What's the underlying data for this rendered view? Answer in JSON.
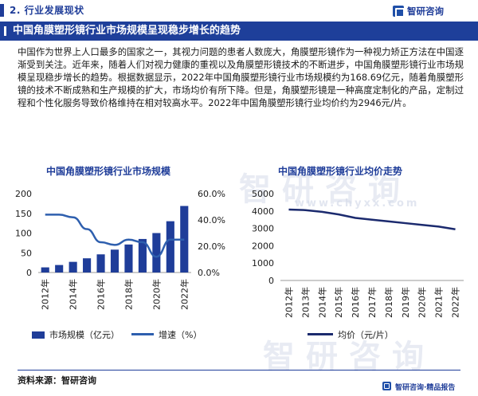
{
  "header": {
    "section_title": "2. 行业发展现状",
    "logo_text": "智研咨询",
    "logo_icon": "zhiyan-logo-icon"
  },
  "banner": {
    "title": "中国角膜塑形镜行业市场规模呈现稳步增长的趋势"
  },
  "paragraph": "中国作为世界上人口最多的国家之一，其视力问题的患者人数庞大，角膜塑形镜作为一种视力矫正方法在中国逐渐受到关注。近年来，随着人们对视力健康的重视以及角膜塑形镜技术的不断进步，中国角膜塑形镜行业市场规模呈现稳步增长的趋势。根据数据显示，2022年中国角膜塑形镜行业市场规模约为168.69亿元，随着角膜塑形镜的技术不断成熟和生产规模的扩大，市场均价有所下降。但是，角膜塑形镜是一种高度定制化的产品，定制过程和个性化服务导致价格维持在相对较高水平。2022年中国角膜塑形镜行业均价约为2946元/片。",
  "watermark": {
    "cn": "智研咨询",
    "url": "www.chyxx.com"
  },
  "chart_data": [
    {
      "type": "bar",
      "title": "中国角膜塑形镜行业市场规模",
      "categories": [
        "2012年",
        "2013年",
        "2014年",
        "2015年",
        "2016年",
        "2017年",
        "2018年",
        "2019年",
        "2020年",
        "2021年",
        "2022年"
      ],
      "x_tick_labels": [
        "2012年",
        "2014年",
        "2016年",
        "2018年",
        "2020年",
        "2022年"
      ],
      "series": [
        {
          "name": "市场规模（亿元）",
          "type": "bar",
          "axis": "left",
          "values": [
            13,
            19,
            27,
            36,
            46,
            58,
            71,
            85,
            100,
            130,
            168.69
          ]
        },
        {
          "name": "增速（%）",
          "type": "line",
          "axis": "right",
          "values": [
            44.0,
            44.0,
            42.0,
            33.0,
            23.0,
            21.0,
            25.0,
            23.0,
            12.0,
            25.0,
            25.0
          ]
        }
      ],
      "left_axis": {
        "ylim": [
          0,
          200
        ],
        "ticks": [
          "0",
          "50",
          "100",
          "150",
          "200"
        ]
      },
      "right_axis": {
        "ylim": [
          0,
          60
        ],
        "ticks": [
          "0.0%",
          "20.0%",
          "40.0%",
          "60.0%"
        ]
      },
      "colors": {
        "bar": "#1f3d99",
        "line": "#2e5fae"
      },
      "legend_position": "bottom"
    },
    {
      "type": "line",
      "title": "中国角膜塑形镜行业均价走势",
      "categories": [
        "2012年",
        "2013年",
        "2014年",
        "2015年",
        "2016年",
        "2017年",
        "2018年",
        "2019年",
        "2020年",
        "2021年",
        "2022年"
      ],
      "series": [
        {
          "name": "均价（元/片）",
          "values": [
            4080,
            4050,
            3950,
            3800,
            3600,
            3500,
            3400,
            3300,
            3200,
            3100,
            2946
          ]
        }
      ],
      "ylim": [
        0,
        5000
      ],
      "ticks": [
        "0",
        "1000",
        "2000",
        "3000",
        "4000",
        "5000"
      ],
      "colors": {
        "line": "#1b2a6e"
      },
      "legend_position": "bottom"
    }
  ],
  "legend": {
    "left_bar": "市场规模（亿元）",
    "left_line": "增速（%）",
    "right_line": "均价（元/片）"
  },
  "footer": {
    "source": "资料来源：智研咨询",
    "slogan": "智研咨询·精品报告"
  }
}
